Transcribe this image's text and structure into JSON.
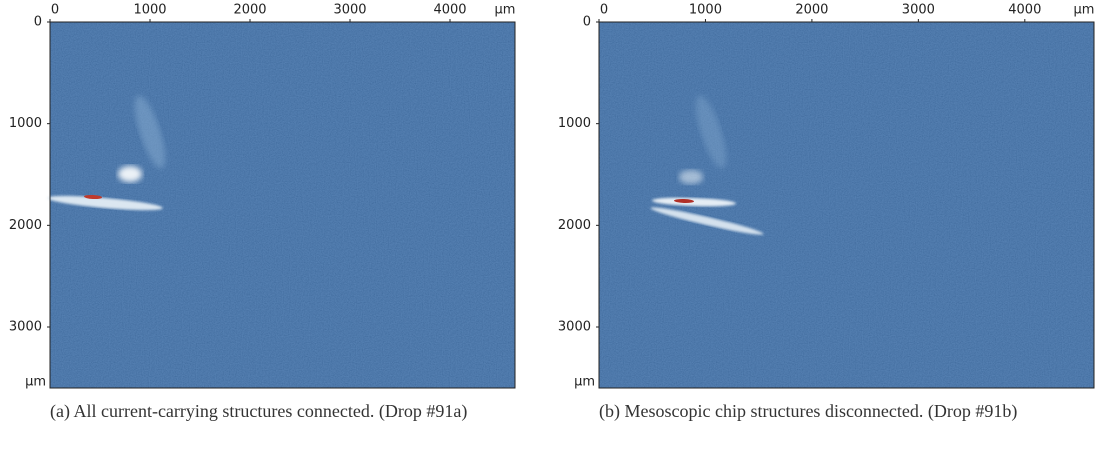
{
  "chart_data": [
    {
      "type": "image",
      "xlim": [
        0,
        4650
      ],
      "ylim": [
        0,
        3600
      ],
      "xticks": [
        0,
        1000,
        2000,
        3000,
        4000
      ],
      "yticks": [
        0,
        1000,
        2000,
        3000
      ],
      "xunit": "μm",
      "yunit": "μm",
      "yreversed": true,
      "caption": "(a) All current-carrying structures connected. (Drop #91a)"
    },
    {
      "type": "image",
      "xlim": [
        0,
        4650
      ],
      "ylim": [
        0,
        3600
      ],
      "xticks": [
        0,
        1000,
        2000,
        3000,
        4000
      ],
      "yticks": [
        0,
        1000,
        2000,
        3000
      ],
      "xunit": "μm",
      "yunit": "μm",
      "yreversed": true,
      "caption": "(b) Mesoscopic chip structures disconnected. (Drop #91b)"
    }
  ]
}
